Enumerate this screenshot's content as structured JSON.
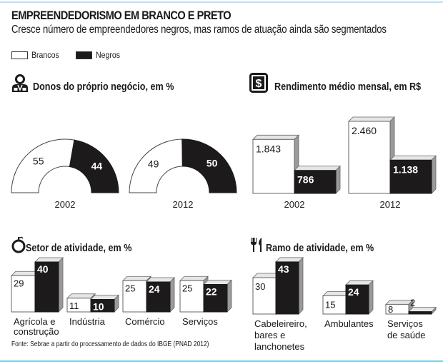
{
  "header": {
    "title": "EMPREENDEDORISMO EM BRANCO E PRETO",
    "subtitle": "Cresce número de empreendedores negros, mas ramos de atuação ainda são segmentados"
  },
  "legend": [
    {
      "label": "Brancos",
      "color": "#ffffff"
    },
    {
      "label": "Negros",
      "color": "#1c1a1b"
    }
  ],
  "colors": {
    "white_fill": "#ffffff",
    "black_fill": "#1c1a1b",
    "top_face": "#e6e6e6",
    "side_face": "#9a9a9a",
    "outline": "#555555",
    "accent_line": "#7fd0e8"
  },
  "icons": {
    "owners": "person-icon",
    "income": "dollar-sign-icon",
    "sector": "apple-icon",
    "branch": "fork-knife-icon"
  },
  "source": "Fonte: Sebrae a partir do processamento de dados do IBGE (PNAD 2012)",
  "chart_data": [
    {
      "id": "owners",
      "type": "pie",
      "subtype": "half-donut",
      "title": "Donos do próprio negócio, em %",
      "unit": "%",
      "categories": [
        "2002",
        "2012"
      ],
      "series": [
        {
          "name": "Brancos",
          "values": [
            55,
            49
          ]
        },
        {
          "name": "Negros",
          "values": [
            44,
            50
          ]
        }
      ]
    },
    {
      "id": "income",
      "type": "bar",
      "title": "Rendimento médio mensal, em R$",
      "unit": "R$",
      "categories": [
        "2002",
        "2012"
      ],
      "series": [
        {
          "name": "Brancos",
          "values": [
            1843,
            2460
          ],
          "labels": [
            "1.843",
            "2.460"
          ]
        },
        {
          "name": "Negros",
          "values": [
            786,
            1138
          ],
          "labels": [
            "786",
            "1.138"
          ]
        }
      ],
      "ylim": [
        0,
        2460
      ]
    },
    {
      "id": "sector",
      "type": "bar",
      "title": "Setor de atividade, em %",
      "unit": "%",
      "categories": [
        [
          "Agrícola e",
          "construção"
        ],
        [
          "Indústria"
        ],
        [
          "Comércio"
        ],
        [
          "Serviços"
        ]
      ],
      "series": [
        {
          "name": "Brancos",
          "values": [
            29,
            11,
            25,
            25
          ]
        },
        {
          "name": "Negros",
          "values": [
            40,
            10,
            24,
            22
          ]
        }
      ],
      "ylim": [
        0,
        43
      ]
    },
    {
      "id": "branch",
      "type": "bar",
      "title": "Ramo de atividade, em %",
      "unit": "%",
      "categories": [
        [
          "Cabeleireiro,",
          "bares e",
          "lanchonetes"
        ],
        [
          "Ambulantes"
        ],
        [
          "Serviços",
          "de saúde"
        ]
      ],
      "series": [
        {
          "name": "Brancos",
          "values": [
            30,
            15,
            8
          ]
        },
        {
          "name": "Negros",
          "values": [
            43,
            24,
            2
          ]
        }
      ],
      "ylim": [
        0,
        43
      ]
    }
  ]
}
